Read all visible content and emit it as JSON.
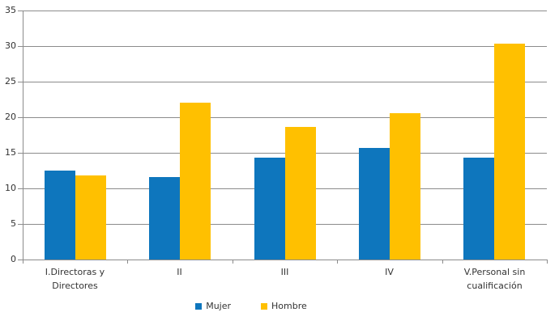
{
  "chart_data": {
    "type": "bar",
    "title": "",
    "xlabel": "",
    "ylabel": "",
    "categories": [
      "I.Directoras y Directores",
      "II",
      "III",
      "IV",
      "V.Personal sin cualificación"
    ],
    "series": [
      {
        "name": "Mujer",
        "color": "#0E76BD",
        "values": [
          12.5,
          11.6,
          14.3,
          15.7,
          14.3
        ]
      },
      {
        "name": "Hombre",
        "color": "#FFC000",
        "values": [
          11.8,
          22.0,
          18.6,
          20.6,
          30.3
        ]
      }
    ],
    "ylim": [
      0,
      35
    ],
    "ytick_step": 5,
    "yticks": [
      0,
      5,
      10,
      15,
      20,
      25,
      30,
      35
    ],
    "grid": true,
    "legend_position": "bottom"
  },
  "colors": {
    "background": "#FFFFFF",
    "gridline": "#8C8C8C",
    "axis": "#8C8C8C",
    "text": "#333333"
  }
}
